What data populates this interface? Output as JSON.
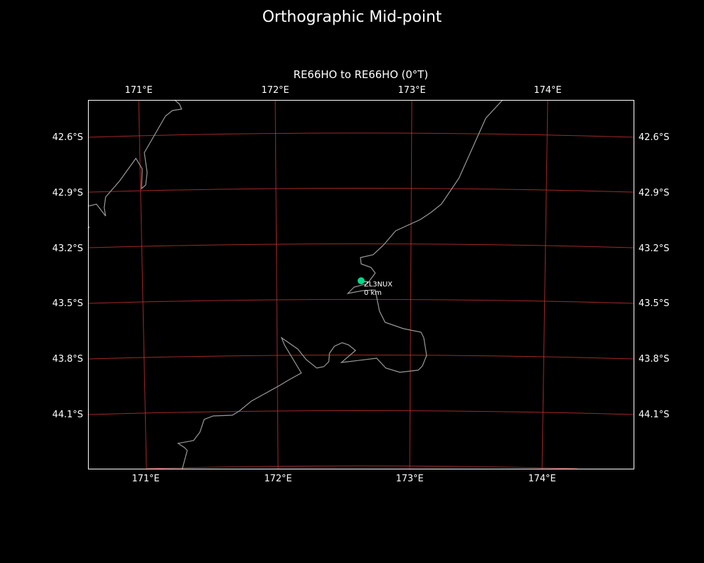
{
  "title": "Orthographic Mid-point",
  "subtitle": "RE66HO to RE66HO (0°T)",
  "map": {
    "projection": "orthographic",
    "lon_ticks_top": [
      "171°E",
      "172°E",
      "173°E",
      "174°E"
    ],
    "lon_ticks_bottom": [
      "171°E",
      "172°E",
      "173°E",
      "174°E"
    ],
    "lat_ticks_left": [
      "42.6°S",
      "42.9°S",
      "43.2°S",
      "43.5°S",
      "43.8°S",
      "44.1°S"
    ],
    "lat_ticks_right": [
      "42.6°S",
      "42.9°S",
      "43.2°S",
      "43.5°S",
      "43.8°S",
      "44.1°S"
    ],
    "gridline_color": "#c03030",
    "coastline_color": "#9a9a9a",
    "marker": {
      "label": "ZL3NUX",
      "distance": "0 km",
      "color": "#00d98a",
      "lat": -43.4,
      "lon": 172.6
    }
  }
}
